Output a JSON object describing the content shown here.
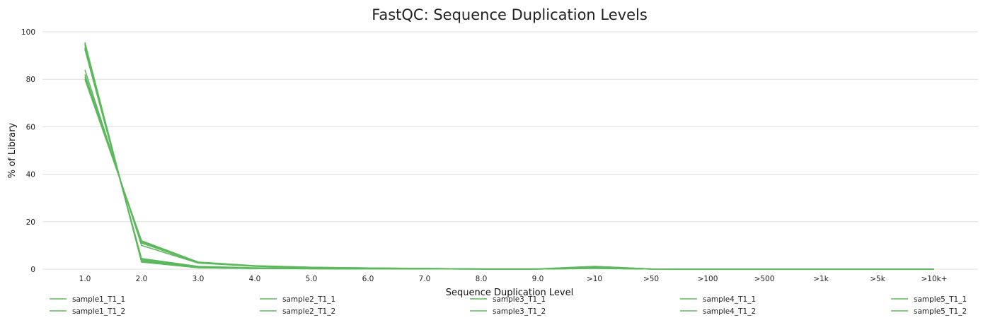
{
  "chart_data": {
    "type": "line",
    "title": "FastQC: Sequence Duplication Levels",
    "xlabel": "Sequence Duplication Level",
    "ylabel": "% of Library",
    "ylim": [
      0,
      100
    ],
    "yticks": [
      "0",
      "20",
      "40",
      "60",
      "80",
      "100"
    ],
    "categories": [
      "1.0",
      "2.0",
      "3.0",
      "4.0",
      "5.0",
      "6.0",
      "7.0",
      "8.0",
      "9.0",
      ">10",
      ">50",
      ">100",
      ">500",
      ">1k",
      ">5k",
      ">10k+"
    ],
    "grid": true,
    "legend_position": "bottom",
    "line_color": "#5cb85c",
    "series": [
      {
        "name": "sample1_T1_1",
        "values": [
          95.5,
          3.0,
          0.6,
          0.3,
          0.2,
          0.1,
          0.1,
          0.05,
          0.05,
          0.4,
          0.05,
          0,
          0,
          0,
          0,
          0
        ]
      },
      {
        "name": "sample1_T1_2",
        "values": [
          93.5,
          3.5,
          0.8,
          0.4,
          0.3,
          0.2,
          0.1,
          0.05,
          0.05,
          0.5,
          0.05,
          0,
          0,
          0,
          0,
          0
        ]
      },
      {
        "name": "sample2_T1_1",
        "values": [
          80.0,
          12.0,
          3.0,
          1.5,
          0.8,
          0.5,
          0.3,
          0.1,
          0.1,
          1.2,
          0.1,
          0,
          0,
          0,
          0,
          0
        ]
      },
      {
        "name": "sample2_T1_2",
        "values": [
          82.0,
          11.0,
          2.8,
          1.3,
          0.7,
          0.5,
          0.3,
          0.1,
          0.1,
          1.0,
          0.1,
          0,
          0,
          0,
          0,
          0
        ]
      },
      {
        "name": "sample3_T1_1",
        "values": [
          94.5,
          3.2,
          0.7,
          0.3,
          0.2,
          0.1,
          0.1,
          0.05,
          0.05,
          0.4,
          0.05,
          0,
          0,
          0,
          0,
          0
        ]
      },
      {
        "name": "sample3_T1_2",
        "values": [
          92.5,
          4.0,
          1.0,
          0.5,
          0.3,
          0.2,
          0.1,
          0.05,
          0.05,
          0.5,
          0.05,
          0,
          0,
          0,
          0,
          0
        ]
      },
      {
        "name": "sample4_T1_1",
        "values": [
          84.0,
          10.0,
          2.6,
          1.2,
          0.6,
          0.4,
          0.3,
          0.1,
          0.1,
          1.1,
          0.1,
          0,
          0,
          0,
          0,
          0
        ]
      },
      {
        "name": "sample4_T1_2",
        "values": [
          81.0,
          11.5,
          2.9,
          1.4,
          0.8,
          0.5,
          0.3,
          0.1,
          0.1,
          1.2,
          0.1,
          0,
          0,
          0,
          0,
          0
        ]
      },
      {
        "name": "sample5_T1_1",
        "values": [
          95.0,
          3.1,
          0.6,
          0.3,
          0.2,
          0.1,
          0.1,
          0.05,
          0.05,
          0.4,
          0.05,
          0,
          0,
          0,
          0,
          0
        ]
      },
      {
        "name": "sample5_T1_2",
        "values": [
          93.0,
          4.5,
          1.2,
          0.6,
          0.3,
          0.2,
          0.1,
          0.05,
          0.05,
          0.5,
          0.05,
          0,
          0,
          0,
          0,
          0
        ]
      }
    ]
  }
}
